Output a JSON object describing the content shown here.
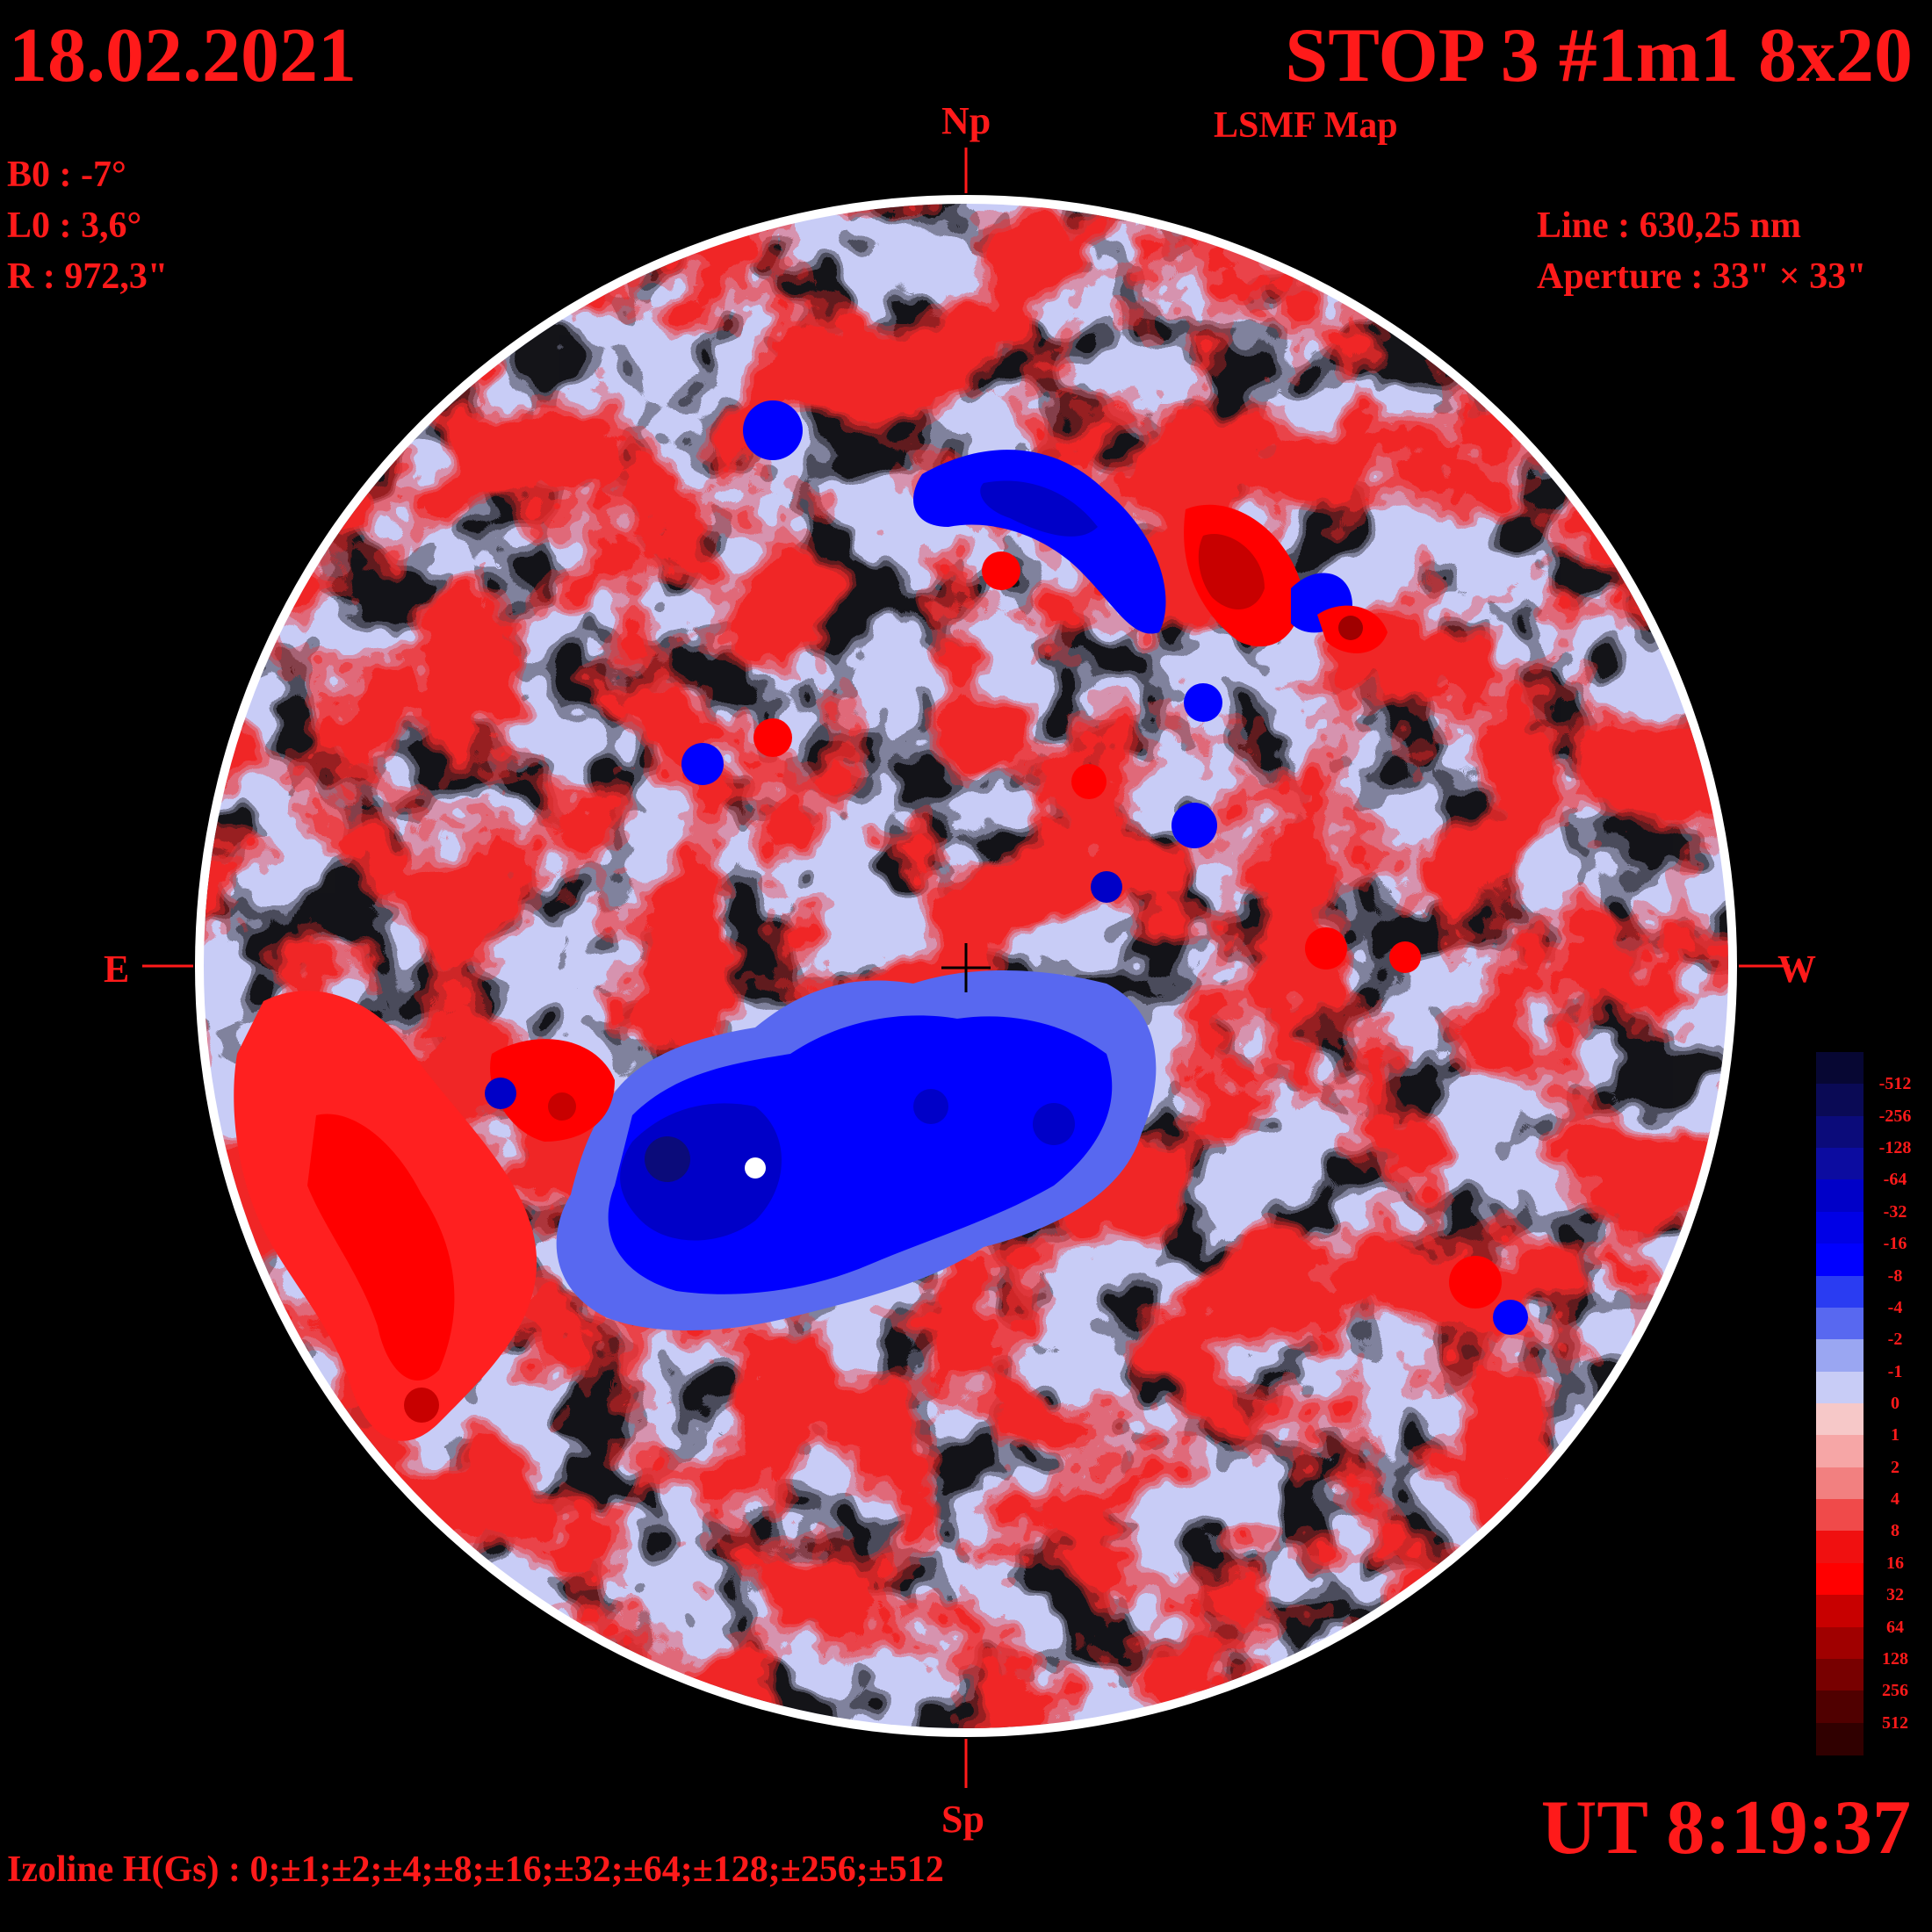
{
  "header": {
    "date": "18.02.2021",
    "title": "STOP 3 #1m1 8x20",
    "subtitle": "LSMF  Map",
    "ut": "UT 8:19:37"
  },
  "params_left": {
    "b0": "B0 : -7°",
    "l0": "L0 : 3,6°",
    "r": "R  : 972,3\""
  },
  "params_right": {
    "line": "Line :  630,25 nm",
    "aperture": "Aperture : 33\" × 33\""
  },
  "directions": {
    "north": "Np",
    "south": "Sp",
    "east": "E",
    "west": "W"
  },
  "footer": {
    "izoline": "Izoline H(Gs) : 0;±1;±2;±4;±8;±16;±32;±64;±128;±256;±512"
  },
  "legend": {
    "labels": [
      "-512",
      "-256",
      "-128",
      "-64",
      "-32",
      "-16",
      "-8",
      "-4",
      "-2",
      "-1",
      "0",
      "1",
      "2",
      "4",
      "8",
      "16",
      "32",
      "64",
      "128",
      "256",
      "512"
    ],
    "colors": [
      "#070733",
      "#0a0a55",
      "#0b0b7a",
      "#0c0ca0",
      "#0000c8",
      "#0000e6",
      "#0000ff",
      "#2a3cf2",
      "#5868f0",
      "#9aa6f2",
      "#c8ccf6",
      "#f6c8c8",
      "#f6a6a6",
      "#f28080",
      "#f04a4a",
      "#f01010",
      "#ff0000",
      "#c80000",
      "#a00000",
      "#780000",
      "#500000",
      "#300000"
    ]
  },
  "colors": {
    "text": "#ff1a1a",
    "positive_field": "#ff0000",
    "negative_field": "#0000ff",
    "background": "#000000"
  }
}
